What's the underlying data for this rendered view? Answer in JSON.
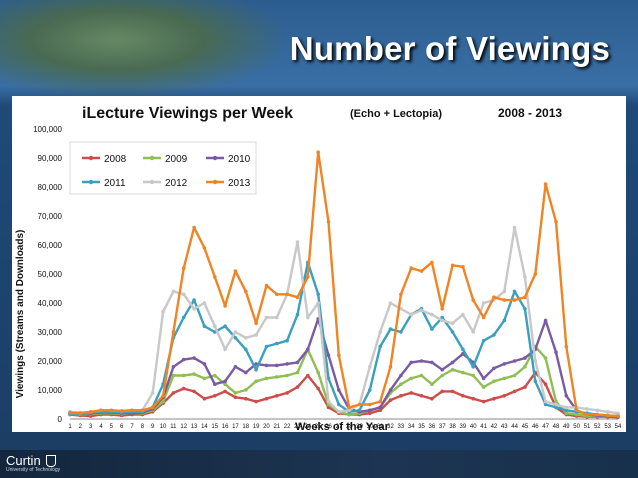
{
  "slide_title": "Number of Viewings",
  "branding": {
    "name": "Curtin",
    "sub": "University of Technology"
  },
  "colors": {
    "2008": "#cc4d4a",
    "2009": "#8fbe53",
    "2010": "#7a5aa2",
    "2011": "#3aa0be",
    "2012": "#c8c8c8",
    "2013": "#f08424"
  },
  "chart_data": {
    "type": "line",
    "title": "iLecture Viewings per Week",
    "subtitle": "(Echo + Lectopia)",
    "period": "2008 - 2013",
    "xlabel": "Weeks of the Year",
    "ylabel": "Viewings (Streams and Downloads)",
    "ylim": [
      0,
      100000
    ],
    "yticks": [
      "0",
      "10,000",
      "20,000",
      "30,000",
      "40,000",
      "50,000",
      "60,000",
      "70,000",
      "80,000",
      "90,000",
      "100,000"
    ],
    "legend_position": "top-left",
    "grid": false,
    "x": [
      1,
      2,
      3,
      4,
      5,
      6,
      7,
      8,
      9,
      10,
      11,
      12,
      13,
      14,
      15,
      16,
      17,
      18,
      19,
      20,
      21,
      22,
      23,
      24,
      25,
      26,
      27,
      28,
      29,
      30,
      31,
      32,
      33,
      34,
      35,
      36,
      37,
      38,
      39,
      40,
      41,
      42,
      43,
      44,
      45,
      46,
      47,
      48,
      49,
      50,
      51,
      52,
      53,
      54
    ],
    "series": [
      {
        "name": "2008",
        "values": [
          1500,
          1200,
          1000,
          1500,
          1500,
          1200,
          1500,
          1500,
          2500,
          5500,
          9000,
          10500,
          9500,
          7000,
          8000,
          9500,
          7500,
          7000,
          6000,
          7000,
          8000,
          9000,
          11000,
          15000,
          10500,
          4000,
          2000,
          1500,
          1500,
          2000,
          3000,
          6500,
          8000,
          9000,
          8000,
          7000,
          9500,
          9500,
          8000,
          7000,
          6000,
          7000,
          8000,
          9500,
          11000,
          16000,
          12000,
          4000,
          1500,
          1000,
          800,
          800,
          800,
          600
        ]
      },
      {
        "name": "2009",
        "values": [
          1800,
          1600,
          1800,
          2000,
          2000,
          1800,
          2000,
          2000,
          3000,
          6000,
          15000,
          15000,
          15500,
          14000,
          15000,
          12000,
          9000,
          10000,
          13000,
          14000,
          14500,
          15000,
          16000,
          24000,
          16000,
          5000,
          2500,
          1500,
          2000,
          3000,
          4000,
          9000,
          12000,
          14000,
          15000,
          12000,
          15000,
          17000,
          16000,
          15000,
          11000,
          13000,
          14000,
          15000,
          18000,
          25000,
          21000,
          6000,
          2000,
          1500,
          1000,
          1000,
          1000,
          800
        ]
      },
      {
        "name": "2010",
        "values": [
          2000,
          1800,
          2000,
          2200,
          2200,
          2000,
          2000,
          2200,
          3500,
          7500,
          18000,
          20500,
          21000,
          19000,
          12000,
          13000,
          18000,
          16000,
          19000,
          18500,
          18500,
          19000,
          19500,
          24000,
          34500,
          22000,
          10000,
          3500,
          2500,
          3000,
          4000,
          10000,
          15000,
          19500,
          20000,
          19500,
          17000,
          19500,
          22500,
          19500,
          14000,
          17500,
          19000,
          20000,
          21000,
          24000,
          34000,
          23000,
          8000,
          3000,
          1500,
          1200,
          1000,
          800
        ]
      },
      {
        "name": "2011",
        "values": [
          2000,
          1800,
          2200,
          2500,
          2500,
          2200,
          2500,
          2500,
          4000,
          12000,
          28000,
          35000,
          41000,
          32000,
          30000,
          32000,
          28000,
          24000,
          17000,
          25000,
          26000,
          27000,
          36000,
          54000,
          43000,
          14000,
          5000,
          2500,
          3000,
          10000,
          25000,
          31000,
          30000,
          36000,
          38000,
          31000,
          35000,
          30000,
          24000,
          18000,
          27000,
          29000,
          34000,
          44000,
          38000,
          13000,
          5000,
          4000,
          3000,
          2500,
          2000,
          1500,
          1200,
          1000
        ]
      },
      {
        "name": "2012",
        "values": [
          2500,
          2200,
          2500,
          3000,
          3000,
          2800,
          3000,
          3000,
          9000,
          37000,
          44000,
          43000,
          38000,
          40000,
          32000,
          24000,
          30000,
          28000,
          29000,
          35000,
          35000,
          43000,
          61000,
          35000,
          40000,
          6000,
          2500,
          3000,
          5000,
          18000,
          30000,
          40000,
          38000,
          36000,
          37500,
          36000,
          34000,
          33000,
          36000,
          30000,
          40000,
          41000,
          44000,
          66000,
          49000,
          20000,
          6000,
          5000,
          4000,
          4000,
          3500,
          3000,
          2500,
          2000
        ]
      },
      {
        "name": "2013",
        "values": [
          2200,
          2000,
          2500,
          3000,
          3000,
          2800,
          3000,
          3000,
          4000,
          8000,
          30000,
          52000,
          66000,
          59000,
          49000,
          39000,
          51000,
          44000,
          33000,
          46000,
          43000,
          43000,
          42000,
          49000,
          92000,
          68000,
          22000,
          4000,
          5000,
          5000,
          6000,
          18000,
          43000,
          52000,
          51000,
          54000,
          38000,
          53000,
          52500,
          41000,
          35000,
          42000,
          41000,
          41000,
          42000,
          50000,
          81000,
          68000,
          25000,
          3000,
          1500,
          1500,
          1200,
          1000
        ]
      }
    ]
  }
}
